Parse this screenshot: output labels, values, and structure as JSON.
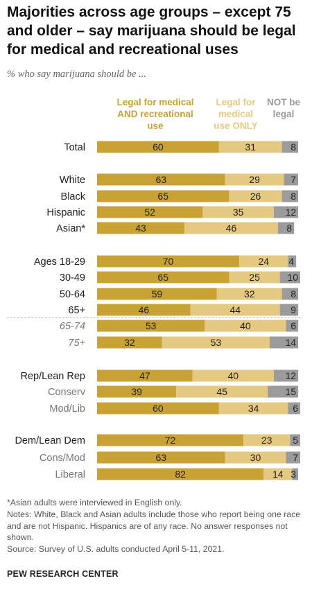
{
  "title": "Majorities across age groups – except 75 and older – say marijuana should be legal for medical and recreational uses",
  "subtitle": "% who say marijuana should be ...",
  "legend": {
    "medical_and_recreational": "Legal for medical AND recreational use",
    "medical_only": "Legal for medical use ONLY",
    "not_legal": "NOT be legal"
  },
  "colors": {
    "medical_and_recreational": "#c9a235",
    "medical_only": "#e6c980",
    "not_legal": "#9b9b9b",
    "label_dark": "#222222",
    "label_light": "#777777"
  },
  "notes": [
    "*Asian adults were interviewed in English only.",
    "Notes: White, Black and Asian adults include those who report being one race and are not Hispanic. Hispanics are of any race. No answer responses not shown.",
    "Source: Survey of U.S. adults conducted April 5-11, 2021."
  ],
  "source_brand": "PEW RESEARCH CENTER",
  "chart_data": {
    "type": "bar",
    "orientation": "horizontal",
    "stacked": true,
    "categories": [
      "Total",
      "White",
      "Black",
      "Hispanic",
      "Asian*",
      "Ages 18-29",
      "30-49",
      "50-64",
      "65+",
      "65-74",
      "75+",
      "Rep/Lean Rep",
      "Conserv",
      "Mod/Lib",
      "Dem/Lean Dem",
      "Cons/Mod",
      "Liberal"
    ],
    "subgroup": [
      false,
      false,
      false,
      false,
      false,
      false,
      false,
      false,
      false,
      true,
      true,
      false,
      true,
      true,
      false,
      true,
      true
    ],
    "italic": [
      false,
      false,
      false,
      false,
      false,
      false,
      false,
      false,
      false,
      true,
      true,
      false,
      false,
      false,
      false,
      false,
      false
    ],
    "series": [
      {
        "name": "Legal for medical AND recreational use",
        "values": [
          60,
          63,
          65,
          52,
          43,
          70,
          65,
          59,
          46,
          53,
          32,
          47,
          39,
          60,
          72,
          63,
          82
        ]
      },
      {
        "name": "Legal for medical use ONLY",
        "values": [
          31,
          29,
          26,
          35,
          46,
          24,
          25,
          32,
          44,
          40,
          53,
          40,
          45,
          34,
          23,
          30,
          14
        ]
      },
      {
        "name": "NOT be legal",
        "values": [
          8,
          7,
          8,
          12,
          8,
          4,
          10,
          8,
          9,
          6,
          14,
          12,
          15,
          6,
          5,
          7,
          3
        ]
      }
    ],
    "xlim": [
      0,
      100
    ]
  }
}
